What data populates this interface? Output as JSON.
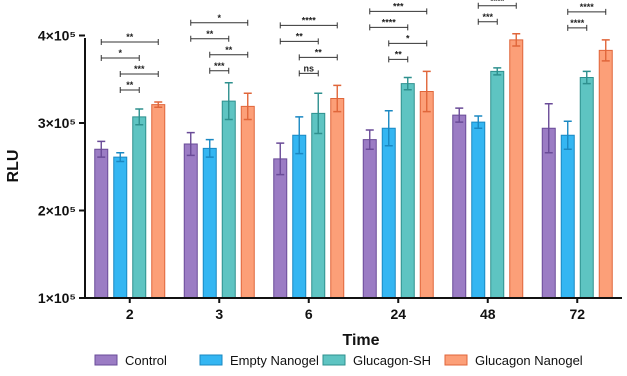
{
  "chart_data": {
    "type": "bar",
    "xlabel": "Time",
    "ylabel": "RLU",
    "ylim": [
      100000,
      420000
    ],
    "y_ticks": [
      {
        "value": 100000,
        "label": "1×10⁵"
      },
      {
        "value": 200000,
        "label": "2×10⁵"
      },
      {
        "value": 300000,
        "label": "3×10⁵"
      },
      {
        "value": 400000,
        "label": "4×10⁵"
      }
    ],
    "categories": [
      "2",
      "3",
      "6",
      "24",
      "48",
      "72"
    ],
    "series": [
      {
        "name": "Control",
        "color": "#9b7cc4",
        "stroke": "#6a4b98",
        "values": [
          270000,
          276000,
          259000,
          281000,
          309000,
          294000
        ],
        "errors": [
          9000,
          13000,
          18000,
          11000,
          8000,
          28000
        ]
      },
      {
        "name": "Empty Nanogel",
        "color": "#34b6f2",
        "stroke": "#1a88c2",
        "values": [
          261000,
          271000,
          286000,
          294000,
          301000,
          286000
        ],
        "errors": [
          5000,
          10000,
          21000,
          20000,
          7000,
          16000
        ]
      },
      {
        "name": "Glucagon-SH",
        "color": "#5ec4c2",
        "stroke": "#2e908e",
        "values": [
          307000,
          325000,
          311000,
          345000,
          359000,
          352000
        ],
        "errors": [
          9000,
          21000,
          23000,
          7000,
          4000,
          7000
        ]
      },
      {
        "name": "Glucagon Nanogel",
        "color": "#fc9f78",
        "stroke": "#e0663a",
        "values": [
          321000,
          319000,
          328000,
          336000,
          395000,
          383000
        ],
        "errors": [
          3000,
          15000,
          15000,
          23000,
          7000,
          12000
        ]
      }
    ],
    "significance": [
      [
        {
          "from": 0,
          "to": 3,
          "label": "**"
        },
        {
          "from": 0,
          "to": 2,
          "label": "*"
        },
        {
          "from": 1,
          "to": 3,
          "label": "***"
        },
        {
          "from": 1,
          "to": 2,
          "label": "**"
        }
      ],
      [
        {
          "from": 0,
          "to": 3,
          "label": "*"
        },
        {
          "from": 0,
          "to": 2,
          "label": "**"
        },
        {
          "from": 1,
          "to": 3,
          "label": "**"
        },
        {
          "from": 1,
          "to": 2,
          "label": "***"
        }
      ],
      [
        {
          "from": 0,
          "to": 3,
          "label": "****"
        },
        {
          "from": 0,
          "to": 2,
          "label": "**"
        },
        {
          "from": 1,
          "to": 3,
          "label": "**"
        },
        {
          "from": 1,
          "to": 2,
          "label": "ns"
        }
      ],
      [
        {
          "from": 0,
          "to": 3,
          "label": "***"
        },
        {
          "from": 0,
          "to": 2,
          "label": "****"
        },
        {
          "from": 1,
          "to": 3,
          "label": "*"
        },
        {
          "from": 1,
          "to": 2,
          "label": "**"
        }
      ],
      [
        {
          "from": 0,
          "to": 3,
          "label": "****"
        },
        {
          "from": 0,
          "to": 2,
          "label": "**"
        },
        {
          "from": 1,
          "to": 3,
          "label": "****"
        },
        {
          "from": 1,
          "to": 2,
          "label": "***"
        }
      ],
      [
        {
          "from": 0,
          "to": 3,
          "label": "****"
        },
        {
          "from": 0,
          "to": 2,
          "label": "***"
        },
        {
          "from": 1,
          "to": 3,
          "label": "****"
        },
        {
          "from": 1,
          "to": 2,
          "label": "****"
        }
      ]
    ],
    "legend_position": "bottom"
  }
}
